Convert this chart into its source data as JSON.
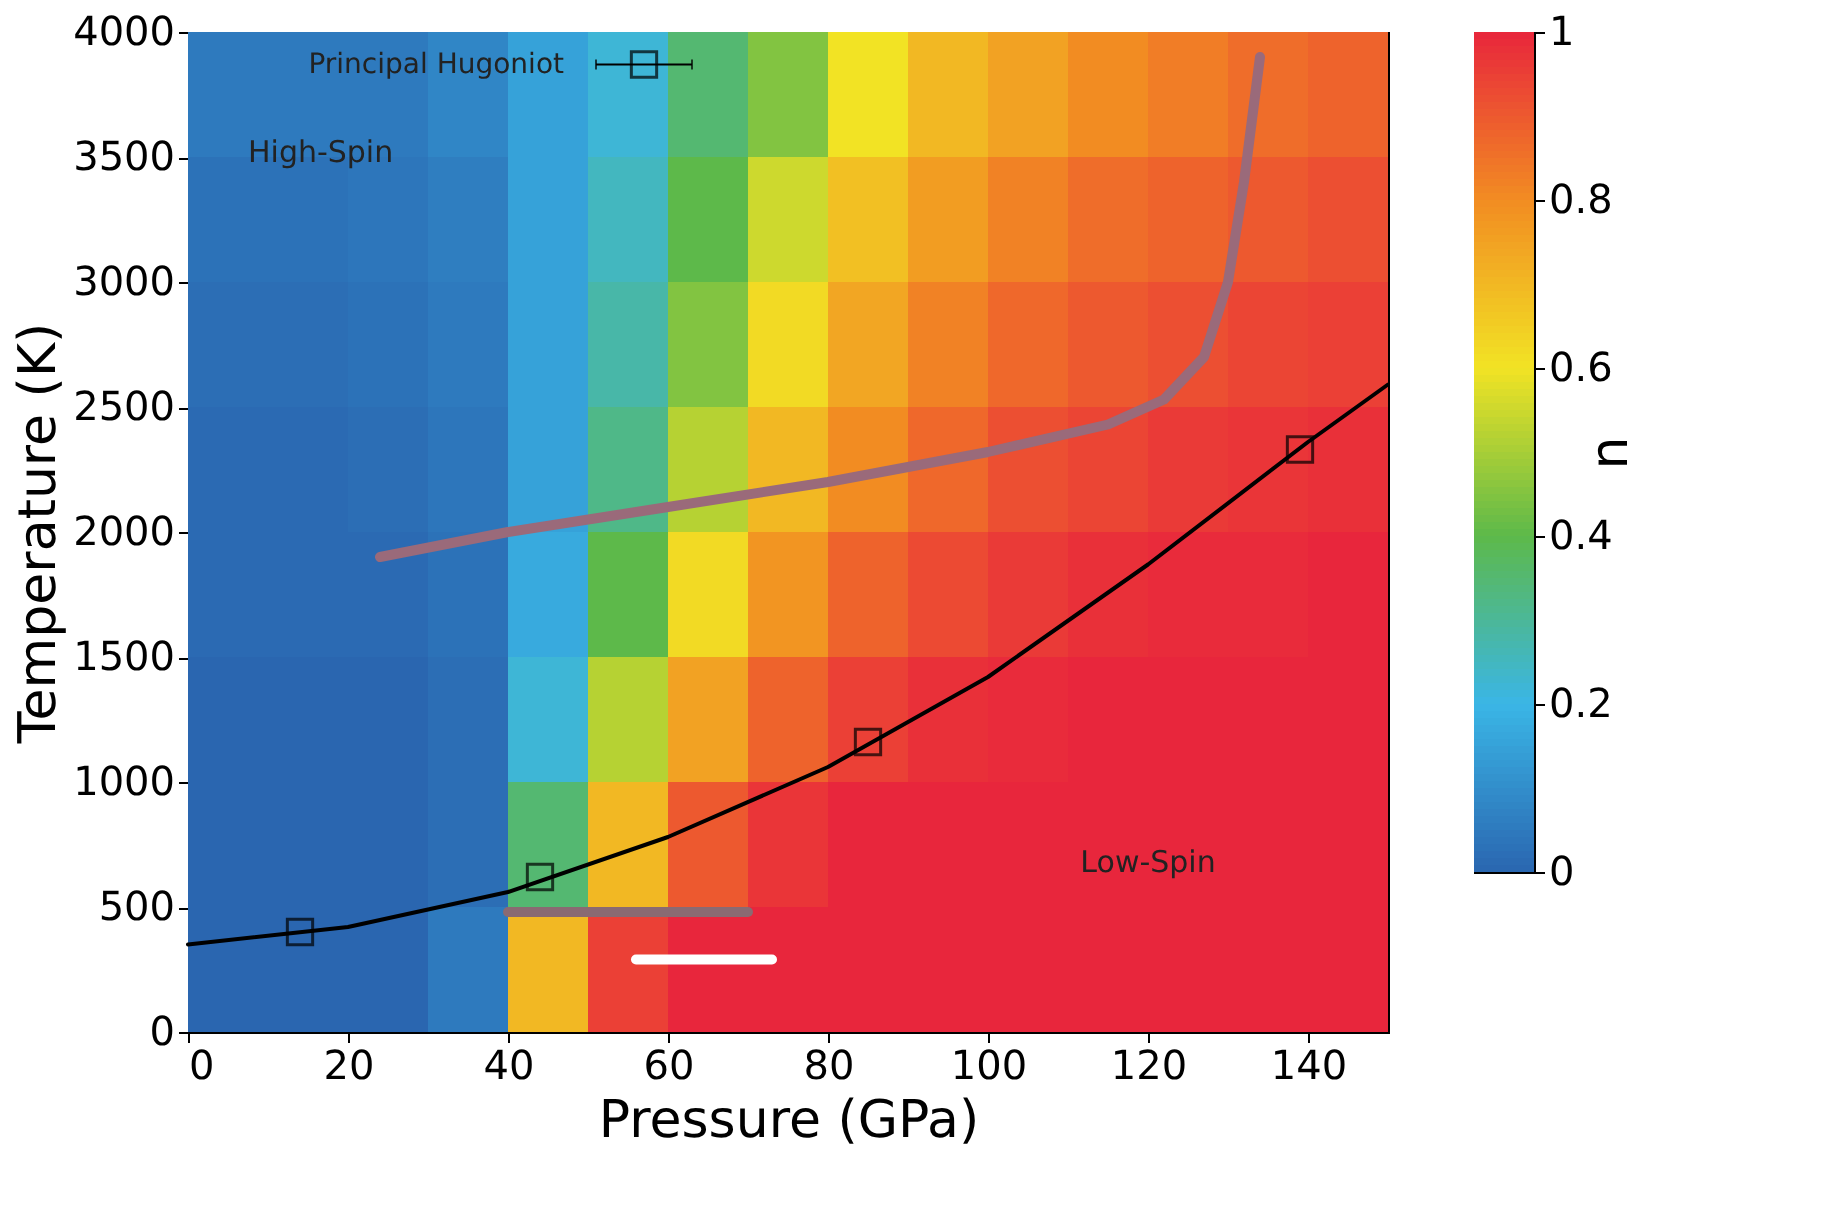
{
  "chart_data": {
    "type": "heatmap",
    "xlabel": "Pressure (GPa)",
    "ylabel": "Temperature (K)",
    "clabel": "n",
    "cells": [
      [
        0.05,
        0.05,
        0.05,
        0.08,
        0.15,
        0.22,
        0.35,
        0.45,
        0.6,
        0.7,
        0.75,
        0.8,
        0.83,
        0.86,
        0.88
      ],
      [
        0.03,
        0.03,
        0.04,
        0.06,
        0.15,
        0.25,
        0.4,
        0.55,
        0.68,
        0.76,
        0.82,
        0.86,
        0.88,
        0.9,
        0.92
      ],
      [
        0.02,
        0.02,
        0.03,
        0.05,
        0.15,
        0.28,
        0.45,
        0.62,
        0.74,
        0.82,
        0.87,
        0.9,
        0.92,
        0.94,
        0.95
      ],
      [
        0.01,
        0.01,
        0.02,
        0.04,
        0.15,
        0.32,
        0.52,
        0.7,
        0.8,
        0.87,
        0.92,
        0.94,
        0.96,
        0.97,
        0.98
      ],
      [
        0.01,
        0.01,
        0.01,
        0.03,
        0.17,
        0.4,
        0.62,
        0.78,
        0.88,
        0.93,
        0.96,
        0.98,
        0.99,
        0.99,
        1
      ],
      [
        0,
        0,
        0,
        0.02,
        0.22,
        0.52,
        0.75,
        0.88,
        0.95,
        0.98,
        0.99,
        1,
        1,
        1,
        1
      ],
      [
        0,
        0,
        0,
        0.02,
        0.35,
        0.7,
        0.9,
        0.97,
        1,
        1,
        1,
        1,
        1,
        1,
        1
      ],
      [
        0,
        0,
        0,
        0.05,
        0.7,
        0.95,
        1,
        1,
        1,
        1,
        1,
        1,
        1,
        1,
        1
      ]
    ],
    "clim": [
      0,
      1
    ],
    "cticks": [
      0,
      0.2,
      0.4,
      0.6,
      0.8,
      1
    ],
    "xlim": [
      0,
      150
    ],
    "xticks": [
      0,
      20,
      40,
      60,
      80,
      100,
      120,
      140
    ],
    "ylim": [
      0,
      4000
    ],
    "yticks": [
      0,
      500,
      1000,
      1500,
      2000,
      2500,
      3000,
      3500,
      4000
    ],
    "grid": false,
    "series": [
      {
        "type": "line",
        "color": "#000000",
        "x": [
          0,
          20,
          40,
          60,
          80,
          100,
          120,
          140,
          150
        ],
        "values": [
          350,
          420,
          560,
          780,
          1060,
          1420,
          1870,
          2360,
          2590
        ]
      },
      {
        "type": "line",
        "color": "#9a6a7a",
        "x": [
          24,
          40,
          60,
          80,
          100,
          115,
          122,
          127,
          130,
          132,
          134
        ],
        "values": [
          1900,
          2000,
          2100,
          2200,
          2320,
          2430,
          2530,
          2700,
          3000,
          3400,
          3900
        ]
      },
      {
        "type": "scatter",
        "marker": "square",
        "color": "#000000",
        "x": [
          14,
          44,
          85,
          139,
          57
        ],
        "values": [
          400,
          620,
          1160,
          2330,
          3870
        ],
        "xerrors": [
          null,
          null,
          null,
          null,
          [
            51,
            63
          ]
        ]
      },
      {
        "type": "line",
        "color": "#8a6a72",
        "x": [
          40,
          70
        ],
        "values": [
          480,
          480
        ]
      },
      {
        "type": "line",
        "color": "#ffffff",
        "x": [
          56,
          73
        ],
        "values": [
          290,
          290
        ]
      }
    ],
    "annotations": [
      "Principal Hugoniot",
      "High-Spin",
      "Low-Spin"
    ]
  }
}
